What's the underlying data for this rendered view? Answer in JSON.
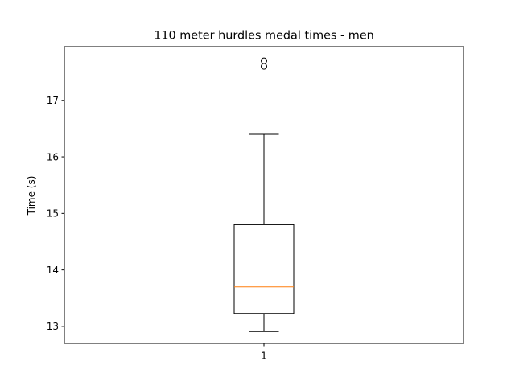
{
  "chart_data": {
    "type": "boxplot",
    "title": "110 meter hurdles medal times - men",
    "xlabel": "",
    "ylabel": "Time (s)",
    "ylim": [
      12.7,
      17.95
    ],
    "yticks": [
      13,
      14,
      15,
      16,
      17
    ],
    "categories": [
      "1"
    ],
    "boxes": [
      {
        "label": "1",
        "whisker_low": 12.91,
        "q1": 13.23,
        "median": 13.7,
        "q3": 14.8,
        "whisker_high": 16.4,
        "fliers": [
          17.6,
          17.7
        ]
      }
    ],
    "colors": {
      "box": "#000000",
      "median": "#ff7f0e",
      "axes": "#000000"
    },
    "grid": false
  }
}
